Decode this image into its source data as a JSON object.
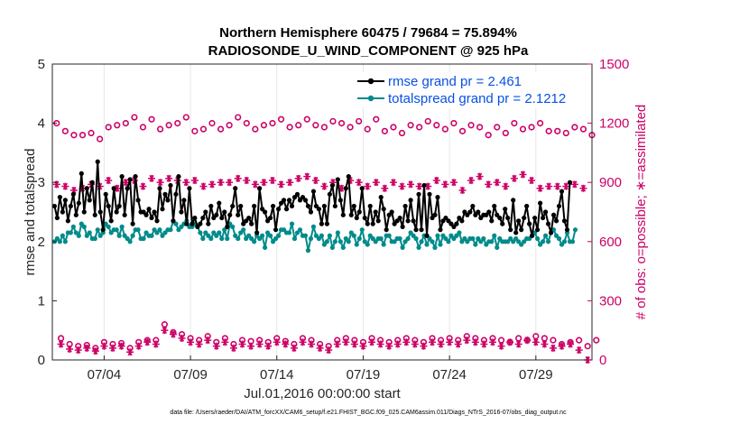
{
  "chart_data": {
    "type": "line",
    "title": "Northern Hemisphere 60475 / 79684 = 75.894%",
    "subtitle": "RADIOSONDE_U_WIND_COMPONENT @ 925 hPa",
    "xlabel": "Jul.01,2016 00:00:00 start",
    "ylabel": "rmse and totalspread",
    "y2label": "# of obs: o=possible; ∗=assimilated",
    "footer": "data file: /Users/raeder/DAI/ATM_forcXX/CAM6_setup/f.e21.FHIST_BGC.f09_025.CAM6assim.011/Diags_NTrS_2016-07/obs_diag_output.nc",
    "x_range": [
      0,
      31.25
    ],
    "ylim": [
      0,
      5
    ],
    "y2lim": [
      0,
      1500
    ],
    "x_ticks": [
      3,
      8,
      13,
      18,
      23,
      28
    ],
    "x_tick_labels": [
      "07/04",
      "07/09",
      "07/14",
      "07/19",
      "07/24",
      "07/29"
    ],
    "y_ticks": [
      "0",
      "1",
      "2",
      "3",
      "4",
      "5"
    ],
    "y2_ticks": [
      "0",
      "300",
      "600",
      "900",
      "1200",
      "1500"
    ],
    "legend_location": "top-right",
    "legend": [
      "rmse grand pr = 2.461",
      "totalspread grand pr = 2.1212"
    ],
    "colors": {
      "rmse": "#000000",
      "spread": "#008b8b",
      "obs": "#cc0066",
      "legend_text": "#0a50e6"
    },
    "series": [
      {
        "name": "rmse",
        "axis": "left",
        "values": [
          2.6,
          2.4,
          2.75,
          2.5,
          2.7,
          2.35,
          2.6,
          2.8,
          2.45,
          2.65,
          3.15,
          2.5,
          2.9,
          2.7,
          3.0,
          2.45,
          3.35,
          2.5,
          2.2,
          2.8,
          2.6,
          2.35,
          2.9,
          2.5,
          2.6,
          3.1,
          2.45,
          2.9,
          3.05,
          2.3,
          3.1,
          2.7,
          2.5,
          2.5,
          2.45,
          2.55,
          2.4,
          2.5,
          2.35,
          2.9,
          2.55,
          2.8,
          2.7,
          2.95,
          2.35,
          2.8,
          3.1,
          2.5,
          2.7,
          2.3,
          2.9,
          2.3,
          2.4,
          2.25,
          2.3,
          2.4,
          2.5,
          2.3,
          2.6,
          2.4,
          2.45,
          2.65,
          2.4,
          2.5,
          2.25,
          2.45,
          2.6,
          2.9,
          2.45,
          2.6,
          2.3,
          2.35,
          2.4,
          2.3,
          2.6,
          2.15,
          2.9,
          2.55,
          2.5,
          2.35,
          2.4,
          2.6,
          2.2,
          2.55,
          2.65,
          2.7,
          2.55,
          2.7,
          2.6,
          2.75,
          2.8,
          2.7,
          2.75,
          2.7,
          2.6,
          2.5,
          2.85,
          2.6,
          2.55,
          2.3,
          2.6,
          2.3,
          2.8,
          2.95,
          2.6,
          3.05,
          2.7,
          2.45,
          2.9,
          3.1,
          2.45,
          2.6,
          2.4,
          2.5,
          2.9,
          2.4,
          2.3,
          2.6,
          2.3,
          2.5,
          2.35,
          2.75,
          2.55,
          2.2,
          2.45,
          2.5,
          2.3,
          2.35,
          2.4,
          2.25,
          2.6,
          2.35,
          2.7,
          2.35,
          2.2,
          2.8,
          2.2,
          2.95,
          2.1,
          2.8,
          2.4,
          2.45,
          2.75,
          2.2,
          2.35,
          2.4,
          2.35,
          2.3,
          2.25,
          2.3,
          2.4,
          2.35,
          2.5,
          2.45,
          2.5,
          2.6,
          2.45,
          2.5,
          2.4,
          2.45,
          2.45,
          2.5,
          2.35,
          2.6,
          2.45,
          2.4,
          2.3,
          2.55,
          2.4,
          2.2,
          2.7,
          2.15,
          2.35,
          2.2,
          2.4,
          2.6,
          2.3,
          2.1,
          2.4,
          2.2,
          2.65,
          2.4,
          2.5,
          2.3,
          2.15,
          2.45,
          2.35,
          2.6,
          2.85,
          2.35,
          2.2,
          3.0
        ]
      },
      {
        "name": "totalspread",
        "axis": "left",
        "values": [
          2.0,
          2.05,
          2.0,
          2.1,
          2.0,
          2.15,
          2.15,
          2.25,
          2.15,
          2.1,
          2.3,
          2.25,
          2.1,
          2.15,
          2.05,
          2.05,
          2.2,
          2.1,
          2.15,
          2.3,
          2.25,
          2.15,
          2.2,
          2.2,
          2.1,
          2.25,
          2.1,
          2.05,
          2.0,
          2.1,
          2.2,
          2.2,
          2.05,
          2.05,
          2.15,
          2.1,
          2.1,
          2.2,
          2.15,
          2.2,
          2.1,
          2.15,
          2.2,
          2.2,
          2.35,
          2.3,
          2.2,
          2.25,
          2.3,
          2.35,
          2.25,
          2.25,
          2.3,
          2.25,
          2.15,
          2.05,
          2.15,
          2.1,
          2.05,
          2.15,
          2.1,
          2.15,
          2.05,
          2.2,
          2.05,
          2.3,
          2.25,
          2.1,
          2.05,
          2.15,
          2.2,
          2.05,
          2.1,
          2.05,
          2.0,
          2.1,
          2.05,
          2.1,
          1.9,
          2.15,
          2.1,
          2.0,
          2.05,
          2.1,
          2.2,
          2.2,
          2.15,
          2.15,
          2.3,
          2.05,
          2.15,
          2.2,
          2.1,
          2.1,
          1.85,
          2.05,
          2.25,
          2.1,
          2.05,
          2.1,
          1.95,
          2.0,
          2.1,
          1.9,
          2.0,
          2.15,
          2.0,
          1.9,
          2.05,
          2.0,
          2.15,
          2.1,
          1.95,
          2.05,
          2.2,
          2.0,
          1.95,
          2.1,
          2.05,
          2.0,
          2.05,
          2.05,
          1.95,
          2.1,
          2.1,
          2.0,
          2.0,
          2.05,
          2.05,
          1.9,
          2.0,
          2.05,
          2.15,
          2.1,
          2.05,
          1.9,
          2.0,
          2.1,
          1.95,
          2.05,
          2.0,
          1.9,
          2.1,
          1.95,
          2.1,
          2.05,
          2.0,
          2.1,
          2.05,
          2.1,
          2.15,
          2.0,
          2.05,
          2.0,
          2.05,
          2.05,
          1.95,
          2.05,
          2.0,
          2.05,
          1.95,
          2.0,
          2.0,
          2.1,
          1.9,
          2.05,
          2.0,
          2.0,
          2.0,
          2.05,
          2.0,
          2.05,
          2.0,
          1.95,
          2.0,
          2.05,
          2.05,
          2.1,
          2.15,
          2.05,
          1.95,
          2.0,
          2.1,
          2.0,
          2.15,
          2.2,
          2.1,
          2.05,
          1.95,
          2.0,
          2.15,
          2.0,
          2.0,
          2.2
        ]
      },
      {
        "name": "obs_possible",
        "axis": "right",
        "values": [
          1200,
          110,
          1160,
          80,
          1140,
          70,
          1140,
          75,
          1150,
          60,
          1120,
          90,
          1180,
          80,
          1190,
          85,
          1200,
          60,
          1230,
          90,
          1180,
          100,
          1220,
          100,
          1170,
          180,
          1190,
          140,
          1200,
          130,
          1230,
          110,
          1160,
          100,
          1170,
          120,
          1200,
          90,
          1170,
          110,
          1190,
          80,
          1230,
          100,
          1200,
          95,
          1170,
          100,
          1190,
          90,
          1200,
          110,
          1220,
          95,
          1180,
          80,
          1190,
          110,
          1220,
          100,
          1190,
          80,
          1180,
          70,
          1210,
          100,
          1200,
          110,
          1180,
          100,
          1210,
          90,
          1170,
          110,
          1220,
          100,
          1160,
          90,
          1180,
          100,
          1150,
          110,
          1190,
          100,
          1180,
          90,
          1210,
          110,
          1190,
          100,
          1170,
          110,
          1200,
          100,
          1160,
          120,
          1190,
          110,
          1180,
          100,
          1140,
          110,
          1180,
          100,
          1150,
          90,
          1200,
          110,
          1170,
          100,
          1180,
          120,
          1200,
          110,
          1160,
          100,
          1160,
          80,
          1150,
          90,
          1180,
          100,
          1170,
          70,
          1140,
          100
        ]
      },
      {
        "name": "obs_assimilated",
        "axis": "right",
        "values": [
          890,
          80,
          880,
          55,
          860,
          50,
          870,
          60,
          890,
          45,
          880,
          70,
          910,
          60,
          870,
          70,
          900,
          40,
          910,
          70,
          880,
          90,
          920,
          80,
          900,
          150,
          920,
          130,
          910,
          110,
          900,
          90,
          910,
          80,
          880,
          100,
          890,
          70,
          900,
          90,
          900,
          60,
          920,
          80,
          910,
          70,
          890,
          80,
          900,
          70,
          910,
          90,
          890,
          80,
          900,
          60,
          920,
          90,
          930,
          80,
          910,
          60,
          880,
          50,
          900,
          80,
          870,
          90,
          910,
          80,
          900,
          70,
          880,
          90,
          900,
          80,
          870,
          70,
          900,
          80,
          880,
          90,
          890,
          80,
          880,
          70,
          880,
          90,
          910,
          80,
          890,
          90,
          900,
          80,
          860,
          100,
          910,
          90,
          930,
          80,
          890,
          90,
          900,
          70,
          880,
          90,
          920,
          80,
          940,
          100,
          910,
          90,
          870,
          80,
          880,
          60,
          880,
          70,
          880,
          80,
          890,
          50,
          870,
          0
        ]
      }
    ]
  }
}
